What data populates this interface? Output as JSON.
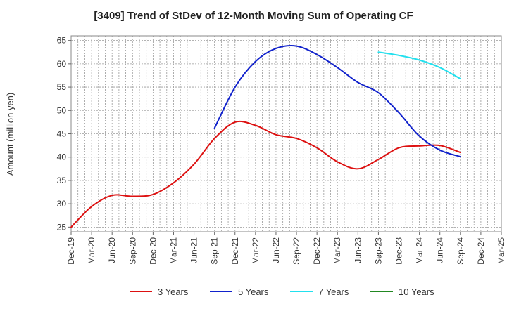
{
  "chart_data": {
    "type": "line",
    "title": "[3409]  Trend of StDev of 12-Month Moving Sum of Operating CF",
    "ylabel": "Amount (million yen)",
    "xlabel": "",
    "ylim": [
      24,
      66
    ],
    "yticks": [
      25,
      30,
      35,
      40,
      45,
      50,
      55,
      60,
      65
    ],
    "grid": true,
    "legend_position": "bottom",
    "x_start": "Dec-19",
    "categories": [
      "Dec-19",
      "Mar-20",
      "Jun-20",
      "Sep-20",
      "Dec-20",
      "Mar-21",
      "Jun-21",
      "Sep-21",
      "Dec-21",
      "Mar-22",
      "Jun-22",
      "Sep-22",
      "Dec-22",
      "Mar-23",
      "Jun-23",
      "Sep-23",
      "Dec-23",
      "Mar-24",
      "Jun-24",
      "Sep-24",
      "Dec-24",
      "Mar-25"
    ],
    "series": [
      {
        "name": "3 Years",
        "color": "#dd1111",
        "points": [
          [
            "Dec-19",
            25.0
          ],
          [
            "Mar-20",
            29.4
          ],
          [
            "Jun-20",
            31.8
          ],
          [
            "Sep-20",
            31.6
          ],
          [
            "Dec-20",
            32.0
          ],
          [
            "Mar-21",
            34.5
          ],
          [
            "Jun-21",
            38.5
          ],
          [
            "Sep-21",
            44.0
          ],
          [
            "Dec-21",
            47.5
          ],
          [
            "Mar-22",
            46.8
          ],
          [
            "Jun-22",
            44.8
          ],
          [
            "Sep-22",
            44.0
          ],
          [
            "Dec-22",
            42.0
          ],
          [
            "Mar-23",
            39.0
          ],
          [
            "Jun-23",
            37.5
          ],
          [
            "Sep-23",
            39.5
          ],
          [
            "Dec-23",
            42.0
          ],
          [
            "Mar-24",
            42.4
          ],
          [
            "Jun-24",
            42.5
          ],
          [
            "Sep-24",
            41.0
          ]
        ]
      },
      {
        "name": "5 Years",
        "color": "#1122cc",
        "points": [
          [
            "Sep-21",
            46.2
          ],
          [
            "Dec-21",
            55.0
          ],
          [
            "Mar-22",
            60.5
          ],
          [
            "Jun-22",
            63.3
          ],
          [
            "Sep-22",
            63.8
          ],
          [
            "Dec-22",
            62.0
          ],
          [
            "Mar-23",
            59.2
          ],
          [
            "Jun-23",
            56.0
          ],
          [
            "Sep-23",
            53.8
          ],
          [
            "Dec-23",
            49.5
          ],
          [
            "Mar-24",
            44.5
          ],
          [
            "Jun-24",
            41.5
          ],
          [
            "Sep-24",
            40.1
          ]
        ]
      },
      {
        "name": "7 Years",
        "color": "#22e0ee",
        "points": [
          [
            "Sep-23",
            62.5
          ],
          [
            "Dec-23",
            61.8
          ],
          [
            "Mar-24",
            60.8
          ],
          [
            "Jun-24",
            59.2
          ],
          [
            "Sep-24",
            56.8
          ]
        ]
      },
      {
        "name": "10 Years",
        "color": "#228822",
        "points": []
      }
    ]
  }
}
